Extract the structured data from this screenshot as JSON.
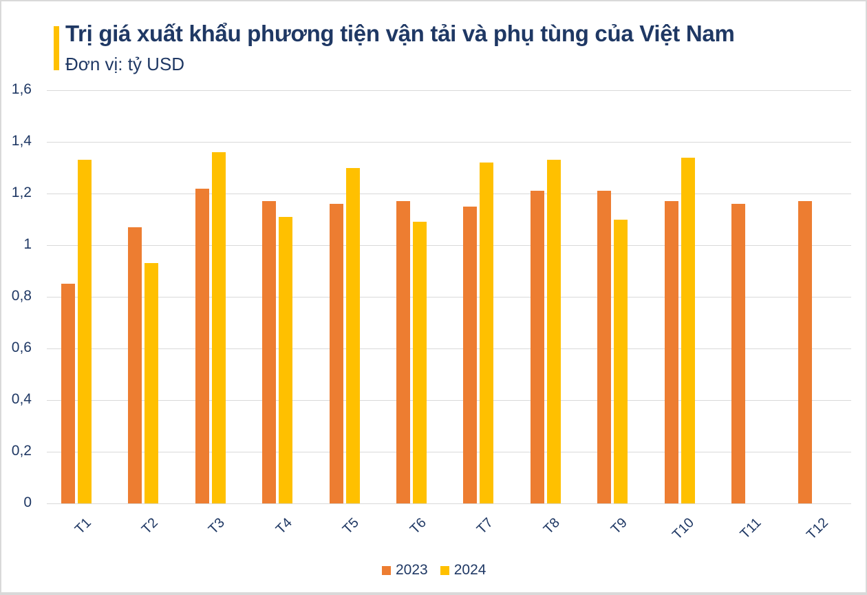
{
  "header": {
    "title": "Trị giá xuất khẩu phương tiện vận tải và phụ tùng của Việt Nam",
    "subtitle": "Đơn vị: tỷ USD"
  },
  "colors": {
    "series_2023": "#ed7d31",
    "series_2024": "#ffc000",
    "accent_bar": "#ffc000",
    "text": "#1f3864",
    "grid": "#d9d9d9"
  },
  "y_ticks": [
    "0",
    "0,2",
    "0,4",
    "0,6",
    "0,8",
    "1",
    "1,2",
    "1,4",
    "1,6"
  ],
  "legend": [
    {
      "label": "2023",
      "color": "#ed7d31"
    },
    {
      "label": "2024",
      "color": "#ffc000"
    }
  ],
  "chart_data": {
    "type": "bar",
    "title": "Trị giá xuất khẩu phương tiện vận tải và phụ tùng của Việt Nam",
    "subtitle": "Đơn vị: tỷ USD",
    "xlabel": "",
    "ylabel": "",
    "ylim": [
      0,
      1.6
    ],
    "y_tick_step": 0.2,
    "grid": true,
    "legend_position": "bottom",
    "categories": [
      "T1",
      "T2",
      "T3",
      "T4",
      "T5",
      "T6",
      "T7",
      "T8",
      "T9",
      "T10",
      "T11",
      "T12"
    ],
    "series": [
      {
        "name": "2023",
        "color": "#ed7d31",
        "values": [
          0.85,
          1.07,
          1.22,
          1.17,
          1.16,
          1.17,
          1.15,
          1.21,
          1.21,
          1.17,
          1.16,
          1.17
        ]
      },
      {
        "name": "2024",
        "color": "#ffc000",
        "values": [
          1.33,
          0.93,
          1.36,
          1.11,
          1.3,
          1.09,
          1.32,
          1.33,
          1.1,
          1.34,
          null,
          null
        ]
      }
    ]
  }
}
